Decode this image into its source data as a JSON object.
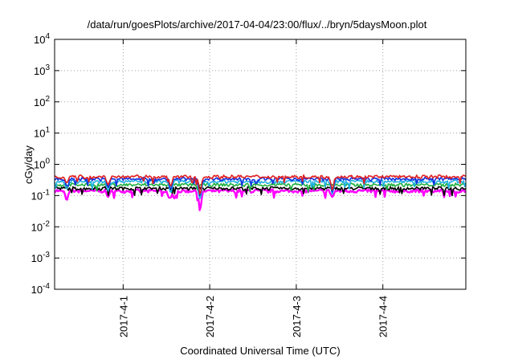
{
  "chart_data": {
    "type": "line",
    "title": "/data/run/goesPlots/archive/2017-04-04/23:00/flux/../bryn/5daysMoon.plot",
    "xlabel": "Coordinated Universal Time (UTC)",
    "ylabel": "cGy/day",
    "yscale": "log",
    "ylim": [
      0.0001,
      10000
    ],
    "ytick_values": [
      0.0001,
      0.001,
      0.01,
      0.1,
      1,
      10,
      100,
      1000,
      10000
    ],
    "ytick_labels": [
      {
        "base": "10",
        "exp": "-4"
      },
      {
        "base": "10",
        "exp": "-3"
      },
      {
        "base": "10",
        "exp": "-2"
      },
      {
        "base": "10",
        "exp": "-1"
      },
      {
        "base": "10",
        "exp": "0"
      },
      {
        "base": "10",
        "exp": "1"
      },
      {
        "base": "10",
        "exp": "2"
      },
      {
        "base": "10",
        "exp": "3"
      },
      {
        "base": "10",
        "exp": "4"
      }
    ],
    "xlim": [
      "2017-03-31 05:00",
      "2017-04-04 23:00"
    ],
    "xtick_values": [
      "2017-04-01 00:00",
      "2017-04-02 00:00",
      "2017-04-03 00:00",
      "2017-04-04 00:00"
    ],
    "xtick_labels": [
      "2017-4-1",
      "2017-4-2",
      "2017-4-3",
      "2017-4-4"
    ],
    "grid": true,
    "legend": "none",
    "series": [
      {
        "color": "#e02020",
        "base": 0.4,
        "dips": [
          {
            "x": "2017-03-31 08:20",
            "v": 0.25
          },
          {
            "x": "2017-03-31 19:50",
            "v": 0.22
          },
          {
            "x": "2017-04-01 13:10",
            "v": 0.2
          },
          {
            "x": "2017-04-01 21:20",
            "v": 0.1
          },
          {
            "x": "2017-04-03 10:00",
            "v": 0.15
          }
        ]
      },
      {
        "color": "#1030e0",
        "base": 0.34,
        "dips": [
          {
            "x": "2017-03-31 08:20",
            "v": 0.2
          },
          {
            "x": "2017-03-31 19:50",
            "v": 0.18
          },
          {
            "x": "2017-04-01 13:10",
            "v": 0.16
          },
          {
            "x": "2017-04-01 21:20",
            "v": 0.09
          },
          {
            "x": "2017-04-03 10:00",
            "v": 0.13
          }
        ]
      },
      {
        "color": "#20b0e0",
        "base": 0.28,
        "dips": [
          {
            "x": "2017-03-31 08:20",
            "v": 0.16
          },
          {
            "x": "2017-03-31 19:50",
            "v": 0.14
          },
          {
            "x": "2017-04-01 13:10",
            "v": 0.12
          },
          {
            "x": "2017-04-01 21:20",
            "v": 0.07
          },
          {
            "x": "2017-04-03 10:00",
            "v": 0.11
          }
        ]
      },
      {
        "color": "#20b040",
        "base": 0.22,
        "dips": []
      },
      {
        "color": "#000000",
        "base": 0.17,
        "dips": []
      },
      {
        "color": "#ff00ff",
        "base": 0.14,
        "dips": [
          {
            "x": "2017-03-31 08:20",
            "v": 0.07
          },
          {
            "x": "2017-03-31 19:50",
            "v": 0.09
          },
          {
            "x": "2017-04-01 12:50",
            "v": 0.08
          },
          {
            "x": "2017-04-01 14:10",
            "v": 0.08
          },
          {
            "x": "2017-04-01 21:20",
            "v": 0.03
          },
          {
            "x": "2017-04-03 10:00",
            "v": 0.09
          }
        ]
      }
    ]
  }
}
